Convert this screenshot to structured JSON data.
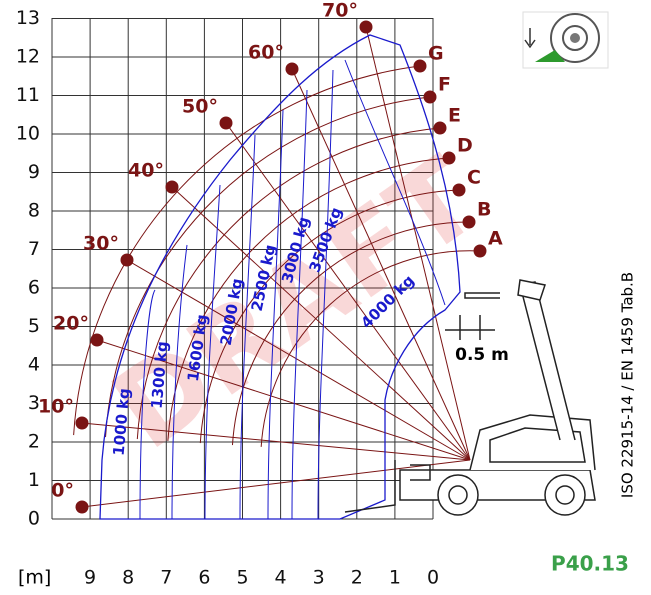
{
  "y_axis": {
    "ticks": [
      0,
      1,
      2,
      3,
      4,
      5,
      6,
      7,
      8,
      9,
      10,
      11,
      12,
      13
    ]
  },
  "x_axis": {
    "unit": "[m]",
    "ticks": [
      9,
      8,
      7,
      6,
      5,
      4,
      3,
      2,
      1,
      0
    ]
  },
  "angles": [
    "0°",
    "10°",
    "20°",
    "30°",
    "40°",
    "50°",
    "60°",
    "70°"
  ],
  "curves": [
    "A",
    "B",
    "C",
    "D",
    "E",
    "F",
    "G"
  ],
  "capacities": [
    "1000 kg",
    "1300 kg",
    "1600 kg",
    "2000 kg",
    "2500 kg",
    "3000 kg",
    "3500 kg",
    "4000 kg"
  ],
  "dimension": "0.5 m",
  "watermark": "DRAFT",
  "standard": "ISO 22915-14 / EN 1459 Tab.B",
  "model": "P40.13"
}
